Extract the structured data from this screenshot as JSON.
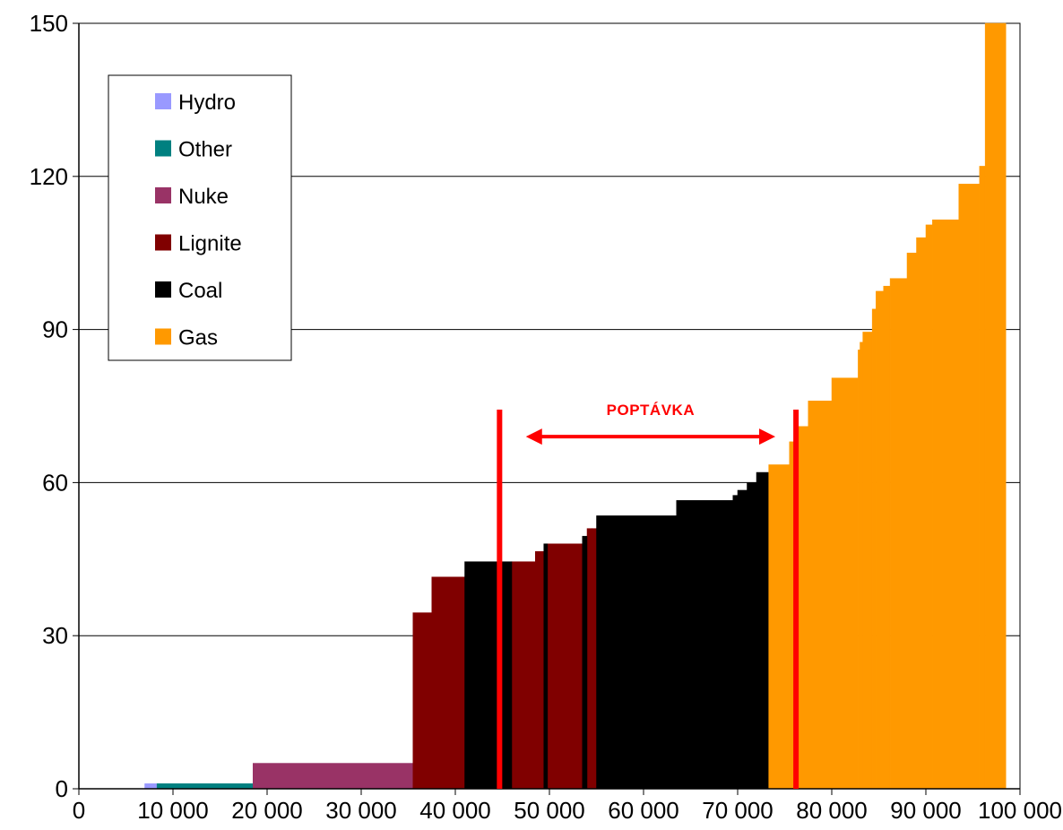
{
  "chart_data": {
    "type": "bar",
    "subtype": "merit-order step chart",
    "title": "",
    "xlabel": "",
    "ylabel": "",
    "xlim": [
      0,
      100000
    ],
    "ylim": [
      0,
      150
    ],
    "x_ticks": [
      0,
      10000,
      20000,
      30000,
      40000,
      50000,
      60000,
      70000,
      80000,
      90000,
      100000
    ],
    "x_tick_labels": [
      "0",
      "10 000",
      "20 000",
      "30 000",
      "40 000",
      "50 000",
      "60 000",
      "70 000",
      "80 000",
      "90 000",
      "100 000"
    ],
    "y_ticks": [
      0,
      30,
      60,
      90,
      120,
      150
    ],
    "y_tick_labels": [
      "0",
      "30",
      "60",
      "90",
      "120",
      "150"
    ],
    "grid": "horizontal",
    "legend_position": "top-left",
    "colors": {
      "Hydro": "#9999ff",
      "Other": "#008080",
      "Nuke": "#993366",
      "Lignite": "#800000",
      "Coal": "#000000",
      "Gas": "#ff9900",
      "demand": "#ff0000"
    },
    "series": [
      {
        "name": "Hydro",
        "steps": [
          [
            7000,
            8300,
            1
          ]
        ]
      },
      {
        "name": "Other",
        "steps": [
          [
            8300,
            18500,
            1
          ]
        ]
      },
      {
        "name": "Nuke",
        "steps": [
          [
            18500,
            35500,
            5
          ]
        ]
      },
      {
        "name": "Lignite",
        "steps": [
          [
            35500,
            37500,
            34.5
          ],
          [
            37500,
            41000,
            41.5
          ],
          [
            46000,
            48500,
            44.5
          ],
          [
            48500,
            49500,
            46.5
          ],
          [
            49500,
            53500,
            48
          ],
          [
            54000,
            54500,
            51
          ],
          [
            54500,
            55000,
            51
          ]
        ]
      },
      {
        "name": "Coal",
        "steps": [
          [
            41000,
            46000,
            44.5
          ],
          [
            49400,
            49800,
            48
          ],
          [
            53500,
            54000,
            49.5
          ],
          [
            55000,
            63500,
            53.5
          ],
          [
            63500,
            69500,
            56.5
          ],
          [
            69500,
            70000,
            57.5
          ],
          [
            70000,
            71000,
            58.5
          ],
          [
            71000,
            72000,
            60
          ],
          [
            72000,
            73300,
            62
          ]
        ]
      },
      {
        "name": "Gas",
        "steps": [
          [
            73300,
            75500,
            63.5
          ],
          [
            75500,
            76500,
            68
          ],
          [
            76500,
            77500,
            71
          ],
          [
            77500,
            80000,
            76
          ],
          [
            80000,
            82800,
            80.5
          ],
          [
            82800,
            83000,
            86
          ],
          [
            83000,
            83300,
            87.5
          ],
          [
            83300,
            84300,
            89.5
          ],
          [
            84300,
            84700,
            94
          ],
          [
            84700,
            85500,
            97.5
          ],
          [
            85500,
            86200,
            98.5
          ],
          [
            86200,
            88000,
            100
          ],
          [
            88000,
            89000,
            105
          ],
          [
            89000,
            90000,
            108
          ],
          [
            90000,
            90700,
            110.5
          ],
          [
            90700,
            93500,
            111.5
          ],
          [
            93500,
            95700,
            118.5
          ],
          [
            95700,
            96300,
            122
          ],
          [
            96300,
            98500,
            150
          ]
        ]
      }
    ],
    "demand_lines": [
      44700,
      76200
    ],
    "annotation": {
      "text": "POPTÁVKA",
      "from": 47500,
      "to": 74000,
      "y": 69
    }
  }
}
